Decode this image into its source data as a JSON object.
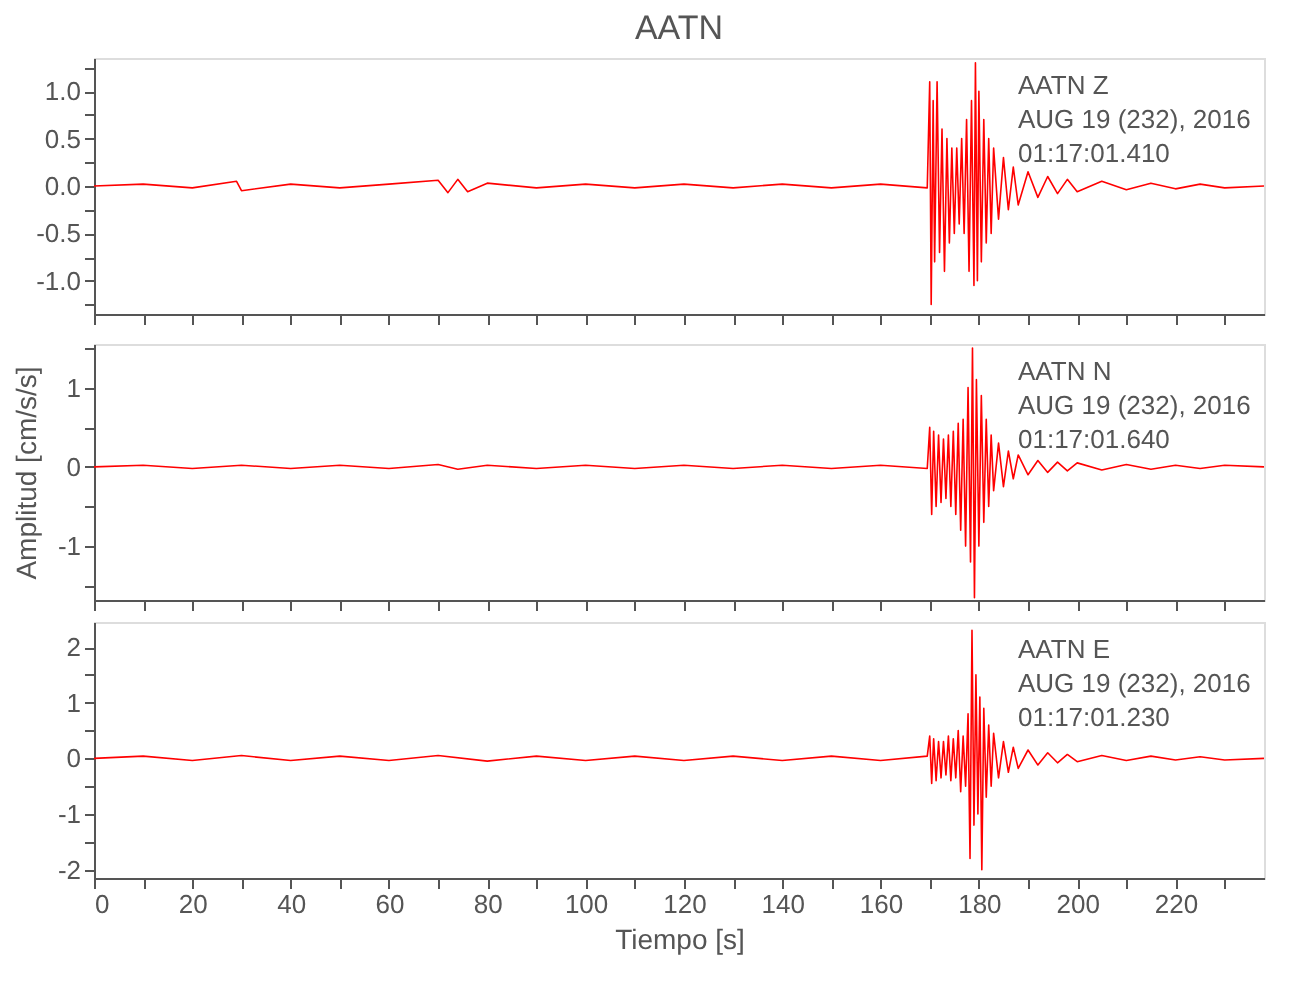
{
  "chart_data": [
    {
      "type": "line",
      "title": "AATN",
      "annotations": [
        "AATN   Z",
        "AUG 19 (232), 2016",
        "01:17:01.410"
      ],
      "x": [
        0,
        10,
        20,
        29,
        30,
        40,
        50,
        60,
        70,
        72,
        74,
        76,
        80,
        90,
        100,
        110,
        120,
        130,
        140,
        150,
        160,
        169.5,
        170,
        170.3,
        170.7,
        171,
        171.5,
        172,
        172.5,
        173,
        173.5,
        174,
        174.5,
        175,
        175.5,
        176,
        176.5,
        177,
        177.5,
        178,
        178.5,
        179,
        179.3,
        179.7,
        180,
        180.5,
        181,
        181.5,
        182,
        182.5,
        183,
        184,
        185,
        186,
        187,
        188,
        190,
        192,
        194,
        196,
        198,
        200,
        205,
        210,
        215,
        220,
        225,
        230,
        238
      ],
      "series": [
        {
          "color": "#ff0000",
          "values": [
            0,
            0.02,
            -0.02,
            0.05,
            -0.05,
            0.02,
            -0.02,
            0.02,
            0.06,
            -0.07,
            0.07,
            -0.06,
            0.03,
            -0.02,
            0.02,
            -0.02,
            0.02,
            -0.02,
            0.02,
            -0.02,
            0.02,
            -0.02,
            1.1,
            -1.25,
            0.9,
            -0.8,
            1.1,
            -0.7,
            0.6,
            -0.9,
            0.5,
            -0.6,
            0.4,
            -0.5,
            0.4,
            -0.4,
            0.5,
            -0.5,
            0.7,
            -0.9,
            0.9,
            -1.05,
            1.3,
            -1.0,
            1.0,
            -0.8,
            0.7,
            -0.6,
            0.5,
            -0.5,
            0.4,
            -0.35,
            0.3,
            -0.25,
            0.2,
            -0.2,
            0.15,
            -0.12,
            0.1,
            -0.08,
            0.07,
            -0.06,
            0.05,
            -0.04,
            0.03,
            -0.03,
            0.02,
            -0.02,
            0
          ]
        }
      ],
      "xlim": [
        0,
        238
      ],
      "ylim": [
        -1.35,
        1.35
      ],
      "xticks": [
        {
          "value": 0,
          "label": null
        },
        {
          "value": 10,
          "label": null
        },
        {
          "value": 20,
          "label": null
        },
        {
          "value": 30,
          "label": null
        },
        {
          "value": 40,
          "label": null
        },
        {
          "value": 50,
          "label": null
        },
        {
          "value": 60,
          "label": null
        },
        {
          "value": 70,
          "label": null
        },
        {
          "value": 80,
          "label": null
        },
        {
          "value": 90,
          "label": null
        },
        {
          "value": 100,
          "label": null
        },
        {
          "value": 110,
          "label": null
        },
        {
          "value": 120,
          "label": null
        },
        {
          "value": 130,
          "label": null
        },
        {
          "value": 140,
          "label": null
        },
        {
          "value": 150,
          "label": null
        },
        {
          "value": 160,
          "label": null
        },
        {
          "value": 170,
          "label": null
        },
        {
          "value": 180,
          "label": null
        },
        {
          "value": 190,
          "label": null
        },
        {
          "value": 200,
          "label": null
        },
        {
          "value": 210,
          "label": null
        },
        {
          "value": 220,
          "label": null
        },
        {
          "value": 230,
          "label": null
        }
      ],
      "yticks": [
        {
          "value": -1.25,
          "label": null
        },
        {
          "value": -1,
          "label": "-1.0"
        },
        {
          "value": -0.75,
          "label": null
        },
        {
          "value": -0.5,
          "label": "-0.5"
        },
        {
          "value": -0.25,
          "label": null
        },
        {
          "value": 0,
          "label": "0.0"
        },
        {
          "value": 0.25,
          "label": null
        },
        {
          "value": 0.5,
          "label": "0.5"
        },
        {
          "value": 0.75,
          "label": null
        },
        {
          "value": 1,
          "label": "1.0"
        },
        {
          "value": 1.25,
          "label": null
        }
      ],
      "tick_labels": "y",
      "grid": false
    },
    {
      "type": "line",
      "ylabel": "Amplitud [cm/s/s]",
      "annotations": [
        "AATN   N",
        "AUG 19 (232), 2016",
        "01:17:01.640"
      ],
      "x": [
        0,
        10,
        20,
        30,
        40,
        50,
        60,
        70,
        74,
        80,
        90,
        100,
        110,
        120,
        130,
        140,
        150,
        160,
        169.5,
        170,
        170.4,
        170.8,
        171.3,
        171.8,
        172.3,
        172.8,
        173.3,
        173.8,
        174.3,
        174.8,
        175.3,
        175.8,
        176.3,
        176.8,
        177.3,
        177.8,
        178.3,
        178.7,
        179.1,
        179.5,
        180,
        180.5,
        181,
        181.5,
        182,
        182.5,
        183,
        184,
        185,
        186,
        187,
        188,
        190,
        192,
        194,
        196,
        198,
        200,
        205,
        210,
        215,
        220,
        225,
        230,
        238
      ],
      "series": [
        {
          "color": "#ff0000",
          "values": [
            0,
            0.02,
            -0.02,
            0.02,
            -0.02,
            0.02,
            -0.02,
            0.03,
            -0.03,
            0.02,
            -0.02,
            0.02,
            -0.02,
            0.02,
            -0.02,
            0.02,
            -0.02,
            0.02,
            -0.02,
            0.5,
            -0.6,
            0.45,
            -0.5,
            0.4,
            -0.45,
            0.35,
            -0.4,
            0.4,
            -0.5,
            0.45,
            -0.6,
            0.55,
            -0.8,
            0.6,
            -1.0,
            1.0,
            -1.2,
            1.5,
            -1.65,
            1.1,
            -1.0,
            0.9,
            -0.7,
            0.6,
            -0.5,
            0.4,
            -0.3,
            0.3,
            -0.25,
            0.2,
            -0.15,
            0.15,
            -0.1,
            0.08,
            -0.07,
            0.06,
            -0.05,
            0.05,
            -0.04,
            0.03,
            -0.03,
            0.02,
            -0.02,
            0.02,
            0
          ]
        }
      ],
      "xlim": [
        0,
        238
      ],
      "ylim": [
        -1.68,
        1.55
      ],
      "xticks": [
        {
          "value": 0,
          "label": null
        },
        {
          "value": 10,
          "label": null
        },
        {
          "value": 20,
          "label": null
        },
        {
          "value": 30,
          "label": null
        },
        {
          "value": 40,
          "label": null
        },
        {
          "value": 50,
          "label": null
        },
        {
          "value": 60,
          "label": null
        },
        {
          "value": 70,
          "label": null
        },
        {
          "value": 80,
          "label": null
        },
        {
          "value": 90,
          "label": null
        },
        {
          "value": 100,
          "label": null
        },
        {
          "value": 110,
          "label": null
        },
        {
          "value": 120,
          "label": null
        },
        {
          "value": 130,
          "label": null
        },
        {
          "value": 140,
          "label": null
        },
        {
          "value": 150,
          "label": null
        },
        {
          "value": 160,
          "label": null
        },
        {
          "value": 170,
          "label": null
        },
        {
          "value": 180,
          "label": null
        },
        {
          "value": 190,
          "label": null
        },
        {
          "value": 200,
          "label": null
        },
        {
          "value": 210,
          "label": null
        },
        {
          "value": 220,
          "label": null
        },
        {
          "value": 230,
          "label": null
        }
      ],
      "yticks": [
        {
          "value": -1.5,
          "label": null
        },
        {
          "value": -1,
          "label": "-1"
        },
        {
          "value": -0.5,
          "label": null
        },
        {
          "value": 0,
          "label": "0"
        },
        {
          "value": 0.5,
          "label": null
        },
        {
          "value": 1,
          "label": "1"
        },
        {
          "value": 1.5,
          "label": null
        }
      ],
      "tick_labels": "y",
      "grid": false
    },
    {
      "type": "line",
      "xlabel": "Tiempo [s]",
      "annotations": [
        "AATN   E",
        "AUG 19 (232), 2016",
        "01:17:01.230"
      ],
      "x": [
        0,
        10,
        20,
        30,
        40,
        50,
        60,
        70,
        80,
        90,
        100,
        110,
        120,
        130,
        140,
        150,
        160,
        169.5,
        170,
        170.4,
        170.8,
        171.3,
        171.8,
        172.3,
        172.8,
        173.3,
        173.8,
        174.3,
        174.8,
        175.3,
        175.8,
        176.3,
        176.8,
        177.3,
        177.8,
        178.2,
        178.6,
        179,
        179.4,
        179.8,
        180.2,
        180.6,
        181,
        181.5,
        182,
        182.5,
        183,
        184,
        185,
        186,
        187,
        188,
        190,
        192,
        194,
        196,
        198,
        200,
        205,
        210,
        215,
        220,
        225,
        230,
        238
      ],
      "series": [
        {
          "color": "#ff0000",
          "values": [
            0,
            0.04,
            -0.04,
            0.05,
            -0.04,
            0.04,
            -0.04,
            0.05,
            -0.05,
            0.04,
            -0.04,
            0.04,
            -0.04,
            0.04,
            -0.04,
            0.04,
            -0.04,
            0.04,
            0.4,
            -0.45,
            0.35,
            -0.4,
            0.3,
            -0.35,
            0.3,
            -0.3,
            0.4,
            -0.4,
            0.35,
            -0.35,
            0.5,
            -0.6,
            0.4,
            -0.5,
            0.8,
            -1.8,
            2.3,
            -1.2,
            1.5,
            -1.0,
            1.1,
            -2.0,
            0.9,
            -0.7,
            0.6,
            -0.5,
            0.45,
            -0.35,
            0.3,
            -0.25,
            0.2,
            -0.18,
            0.15,
            -0.12,
            0.1,
            -0.08,
            0.07,
            -0.06,
            0.05,
            -0.04,
            0.04,
            -0.03,
            0.03,
            -0.03,
            0
          ]
        }
      ],
      "xlim": [
        0,
        238
      ],
      "ylim": [
        -2.15,
        2.45
      ],
      "xticks": [
        {
          "value": 0,
          "label": "0"
        },
        {
          "value": 10,
          "label": null
        },
        {
          "value": 20,
          "label": "20"
        },
        {
          "value": 30,
          "label": null
        },
        {
          "value": 40,
          "label": "40"
        },
        {
          "value": 50,
          "label": null
        },
        {
          "value": 60,
          "label": "60"
        },
        {
          "value": 70,
          "label": null
        },
        {
          "value": 80,
          "label": "80"
        },
        {
          "value": 90,
          "label": null
        },
        {
          "value": 100,
          "label": "100"
        },
        {
          "value": 110,
          "label": null
        },
        {
          "value": 120,
          "label": "120"
        },
        {
          "value": 130,
          "label": null
        },
        {
          "value": 140,
          "label": "140"
        },
        {
          "value": 150,
          "label": null
        },
        {
          "value": 160,
          "label": "160"
        },
        {
          "value": 170,
          "label": null
        },
        {
          "value": 180,
          "label": "180"
        },
        {
          "value": 190,
          "label": null
        },
        {
          "value": 200,
          "label": "200"
        },
        {
          "value": 210,
          "label": null
        },
        {
          "value": 220,
          "label": "220"
        },
        {
          "value": 230,
          "label": null
        }
      ],
      "yticks": [
        {
          "value": -2,
          "label": "-2"
        },
        {
          "value": -1.5,
          "label": null
        },
        {
          "value": -1,
          "label": "-1"
        },
        {
          "value": -0.5,
          "label": null
        },
        {
          "value": 0,
          "label": "0"
        },
        {
          "value": 0.5,
          "label": null
        },
        {
          "value": 1,
          "label": "1"
        },
        {
          "value": 1.5,
          "label": null
        },
        {
          "value": 2,
          "label": "2"
        }
      ],
      "grid": false
    }
  ]
}
